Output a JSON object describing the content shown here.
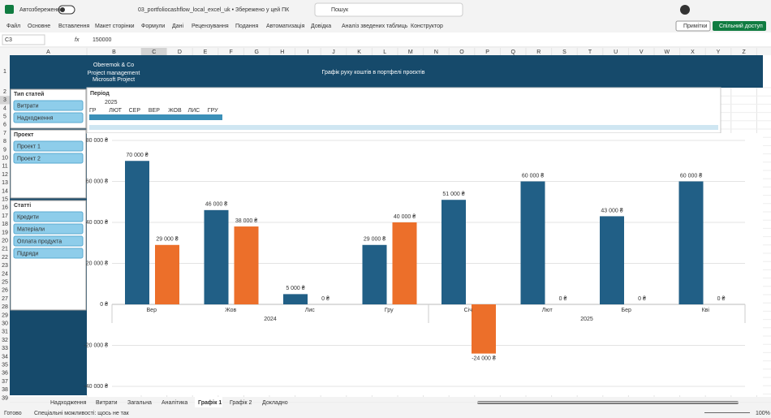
{
  "titlebar": {
    "autosave": "Автозбереження",
    "filename": "03_portfoliocashflow_local_excel_uk • Збережено у цей ПК",
    "search": "Пошук"
  },
  "ribbon": {
    "tabs": [
      "Файл",
      "Основне",
      "Вставлення",
      "Макет сторінки",
      "Формули",
      "Дані",
      "Рецензування",
      "Подання",
      "Автоматизація",
      "Довідка",
      "Аналіз зведених таблиць",
      "Конструктор"
    ],
    "comments": "Примітки",
    "share": "Спільний доступ"
  },
  "formula_bar": {
    "cell": "C3",
    "fx": "fx",
    "value": "150000"
  },
  "columns": [
    "A",
    "B",
    "C",
    "D",
    "E",
    "F",
    "G",
    "H",
    "I",
    "J",
    "K",
    "L",
    "M",
    "N",
    "O",
    "P",
    "Q",
    "R",
    "S",
    "T",
    "U",
    "V",
    "W",
    "X",
    "Y",
    "Z"
  ],
  "rows": [
    1,
    2,
    3,
    4,
    5,
    6,
    7,
    8,
    9,
    10,
    11,
    12,
    13,
    14,
    15,
    16,
    17,
    18,
    19,
    20,
    21,
    22,
    23,
    24,
    25,
    26,
    27,
    28,
    29,
    30,
    31,
    32,
    33,
    34,
    35,
    36,
    37,
    38,
    39
  ],
  "dashboard": {
    "company": "Oberemok & Co",
    "line1": "Project management",
    "line2": "Microsoft Project",
    "title": "Графік руху коштів в портфелі проєктів"
  },
  "slicers": [
    {
      "title": "Тип статей",
      "items": [
        "Витрати",
        "Надходження"
      ]
    },
    {
      "title": "Проект",
      "items": [
        "Проект 1",
        "Проект 2"
      ]
    },
    {
      "title": "Статті",
      "items": [
        "Кредити",
        "Матеріали",
        "Оплата продукта",
        "Підряди"
      ]
    }
  ],
  "timeline": {
    "title": "Період",
    "year": "2025",
    "months": [
      "ГР",
      "ЛЮТ",
      "СЕР",
      "ВЕР",
      "ЖОВ",
      "ЛИС",
      "ГРУ"
    ]
  },
  "chart_data": {
    "type": "bar",
    "categories": [
      "Вер",
      "Жов",
      "Лис",
      "Гру",
      "Січ",
      "Лют",
      "Бер",
      "Кві"
    ],
    "category_groups": [
      {
        "label": "2024",
        "size": 4
      },
      {
        "label": "2025",
        "size": 4
      }
    ],
    "series": [
      {
        "color": "#215f86",
        "values": [
          70000,
          46000,
          5000,
          29000,
          51000,
          60000,
          43000,
          60000
        ],
        "value_labels": [
          "70 000 ₴",
          "46 000 ₴",
          "5 000 ₴",
          "29 000 ₴",
          "51 000 ₴",
          "60 000 ₴",
          "43 000 ₴",
          "60 000 ₴"
        ]
      },
      {
        "color": "#ec6f2a",
        "values": [
          29000,
          38000,
          0,
          40000,
          -24000,
          0,
          0,
          0
        ],
        "value_labels": [
          "29 000 ₴",
          "38 000 ₴",
          "0 ₴",
          "40 000 ₴",
          "-24 000 ₴",
          "0 ₴",
          "0 ₴",
          "0 ₴"
        ]
      }
    ],
    "ylim": [
      -40000,
      80000
    ],
    "yticks": [
      {
        "value": -40000,
        "label": "-40 000 ₴"
      },
      {
        "value": -20000,
        "label": "-20 000 ₴"
      },
      {
        "value": 0,
        "label": "0 ₴"
      },
      {
        "value": 20000,
        "label": "20 000 ₴"
      },
      {
        "value": 40000,
        "label": "40 000 ₴"
      },
      {
        "value": 60000,
        "label": "60 000 ₴"
      },
      {
        "value": 80000,
        "label": "80 000 ₴"
      }
    ],
    "grid": true
  },
  "sheet_tabs": [
    "Надходження",
    "Витрати",
    "Загальна",
    "Аналітика",
    "Графік 1",
    "Графік 2",
    "Докладно"
  ],
  "active_tab": 4,
  "status": {
    "ready": "Готово",
    "accessibility": "Спеціальні можливості: щось не так",
    "zoom": "100%"
  }
}
